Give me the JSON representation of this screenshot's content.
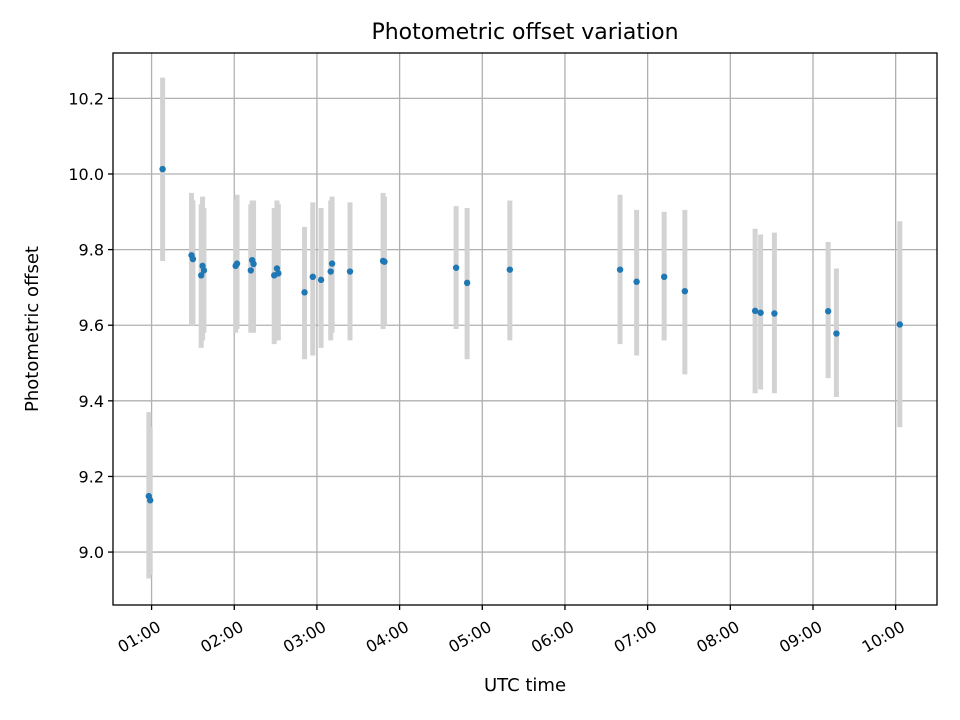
{
  "chart_data": {
    "type": "scatter",
    "title": "Photometric offset variation",
    "xlabel": "UTC time",
    "ylabel": "Photometric offset",
    "xlim": [
      "00:32",
      "10:30"
    ],
    "ylim": [
      8.86,
      10.32
    ],
    "x_ticks": [
      "01:00",
      "02:00",
      "03:00",
      "04:00",
      "05:00",
      "06:00",
      "07:00",
      "08:00",
      "09:00",
      "10:00"
    ],
    "y_ticks": [
      "9.0",
      "9.2",
      "9.4",
      "9.6",
      "9.8",
      "10.0",
      "10.2"
    ],
    "grid": true,
    "colors": {
      "point": "#1f77b4",
      "errorbar": "#d3d3d3",
      "grid": "#b0b0b0"
    },
    "series": [
      {
        "points": [
          {
            "x": "00:58",
            "y": 9.148,
            "ylow": 8.93,
            "yhigh": 9.37
          },
          {
            "x": "00:59",
            "y": 9.137,
            "ylow": 8.94,
            "yhigh": 9.33
          },
          {
            "x": "01:08",
            "y": 10.013,
            "ylow": 9.77,
            "yhigh": 10.255
          },
          {
            "x": "01:29",
            "y": 9.785,
            "ylow": 9.6,
            "yhigh": 9.95
          },
          {
            "x": "01:30",
            "y": 9.775,
            "ylow": 9.6,
            "yhigh": 9.93
          },
          {
            "x": "01:36",
            "y": 9.732,
            "ylow": 9.54,
            "yhigh": 9.92
          },
          {
            "x": "01:37",
            "y": 9.757,
            "ylow": 9.56,
            "yhigh": 9.94
          },
          {
            "x": "01:38",
            "y": 9.745,
            "ylow": 9.58,
            "yhigh": 9.91
          },
          {
            "x": "02:01",
            "y": 9.757,
            "ylow": 9.58,
            "yhigh": 9.93
          },
          {
            "x": "02:02",
            "y": 9.763,
            "ylow": 9.59,
            "yhigh": 9.945
          },
          {
            "x": "02:12",
            "y": 9.745,
            "ylow": 9.58,
            "yhigh": 9.92
          },
          {
            "x": "02:13",
            "y": 9.772,
            "ylow": 9.6,
            "yhigh": 9.93
          },
          {
            "x": "02:14",
            "y": 9.762,
            "ylow": 9.58,
            "yhigh": 9.93
          },
          {
            "x": "02:29",
            "y": 9.732,
            "ylow": 9.55,
            "yhigh": 9.91
          },
          {
            "x": "02:31",
            "y": 9.75,
            "ylow": 9.56,
            "yhigh": 9.93
          },
          {
            "x": "02:32",
            "y": 9.737,
            "ylow": 9.56,
            "yhigh": 9.92
          },
          {
            "x": "02:51",
            "y": 9.687,
            "ylow": 9.51,
            "yhigh": 9.86
          },
          {
            "x": "02:57",
            "y": 9.728,
            "ylow": 9.52,
            "yhigh": 9.925
          },
          {
            "x": "03:03",
            "y": 9.72,
            "ylow": 9.54,
            "yhigh": 9.91
          },
          {
            "x": "03:10",
            "y": 9.742,
            "ylow": 9.56,
            "yhigh": 9.93
          },
          {
            "x": "03:11",
            "y": 9.763,
            "ylow": 9.58,
            "yhigh": 9.94
          },
          {
            "x": "03:24",
            "y": 9.742,
            "ylow": 9.56,
            "yhigh": 9.925
          },
          {
            "x": "03:48",
            "y": 9.77,
            "ylow": 9.59,
            "yhigh": 9.95
          },
          {
            "x": "03:49",
            "y": 9.768,
            "ylow": 9.6,
            "yhigh": 9.94
          },
          {
            "x": "04:41",
            "y": 9.752,
            "ylow": 9.59,
            "yhigh": 9.915
          },
          {
            "x": "04:49",
            "y": 9.712,
            "ylow": 9.51,
            "yhigh": 9.91
          },
          {
            "x": "05:20",
            "y": 9.747,
            "ylow": 9.56,
            "yhigh": 9.93
          },
          {
            "x": "06:40",
            "y": 9.747,
            "ylow": 9.55,
            "yhigh": 9.945
          },
          {
            "x": "06:52",
            "y": 9.715,
            "ylow": 9.52,
            "yhigh": 9.905
          },
          {
            "x": "07:12",
            "y": 9.728,
            "ylow": 9.56,
            "yhigh": 9.9
          },
          {
            "x": "07:27",
            "y": 9.69,
            "ylow": 9.47,
            "yhigh": 9.905
          },
          {
            "x": "08:18",
            "y": 9.638,
            "ylow": 9.42,
            "yhigh": 9.855
          },
          {
            "x": "08:22",
            "y": 9.633,
            "ylow": 9.43,
            "yhigh": 9.84
          },
          {
            "x": "08:32",
            "y": 9.631,
            "ylow": 9.42,
            "yhigh": 9.845
          },
          {
            "x": "09:11",
            "y": 9.637,
            "ylow": 9.46,
            "yhigh": 9.82
          },
          {
            "x": "09:17",
            "y": 9.578,
            "ylow": 9.41,
            "yhigh": 9.75
          },
          {
            "x": "10:03",
            "y": 9.602,
            "ylow": 9.33,
            "yhigh": 9.875
          }
        ]
      }
    ]
  }
}
